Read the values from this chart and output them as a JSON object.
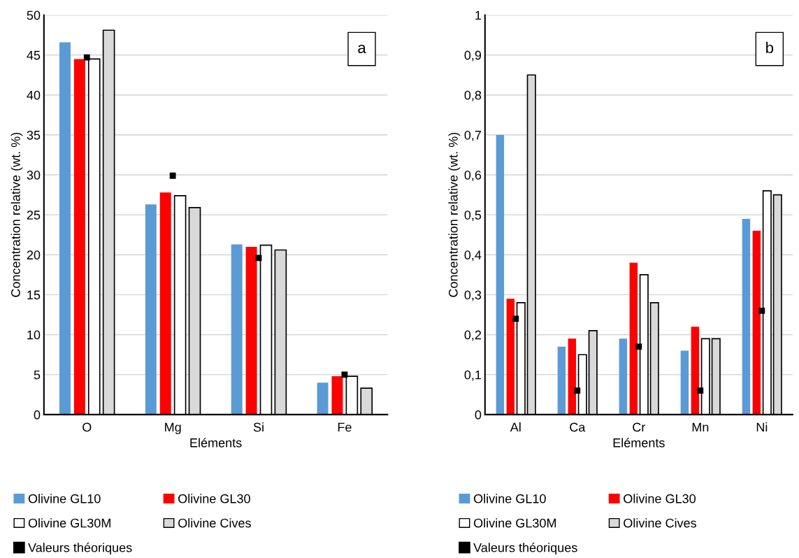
{
  "chart_data": [
    {
      "type": "bar",
      "categories": [
        "O",
        "Mg",
        "Si",
        "Fe"
      ],
      "xlabel": "Eléments",
      "ylabel": "Concentration relative (wt. %)",
      "annotations": [
        "a"
      ],
      "series": [
        {
          "name": "Olivine GL10",
          "color": "#5b9bd5",
          "values": [
            46.6,
            26.3,
            21.3,
            4.0
          ]
        },
        {
          "name": "Olivine GL30",
          "color": "#ff0000",
          "values": [
            44.5,
            27.8,
            21.0,
            4.8
          ]
        },
        {
          "name": "Olivine GL30M",
          "color": "#ffffff",
          "values": [
            44.5,
            27.4,
            21.2,
            4.8
          ]
        },
        {
          "name": "Olivine Cives",
          "color": "#d9d9d9",
          "values": [
            48.1,
            25.9,
            20.6,
            3.3
          ]
        },
        {
          "name": "Valeurs théoriques",
          "type": "scatter",
          "marker": "square",
          "color": "#000000",
          "values": [
            44.7,
            29.9,
            19.6,
            5.0
          ]
        }
      ],
      "ylim": [
        0,
        50
      ],
      "yticks": [
        0,
        5,
        10,
        15,
        20,
        25,
        30,
        35,
        40,
        45,
        50
      ],
      "grid": "y",
      "legend": "bottom"
    },
    {
      "type": "bar",
      "categories": [
        "Al",
        "Ca",
        "Cr",
        "Mn",
        "Ni"
      ],
      "xlabel": "Eléments",
      "ylabel": "Concentration relative (wt. %)",
      "annotations": [
        "b"
      ],
      "series": [
        {
          "name": "Olivine GL10",
          "color": "#5b9bd5",
          "values": [
            0.7,
            0.17,
            0.19,
            0.16,
            0.49
          ]
        },
        {
          "name": "Olivine GL30",
          "color": "#ff0000",
          "values": [
            0.29,
            0.19,
            0.38,
            0.22,
            0.46
          ]
        },
        {
          "name": "Olivine GL30M",
          "color": "#ffffff",
          "values": [
            0.28,
            0.15,
            0.35,
            0.19,
            0.56
          ]
        },
        {
          "name": "Olivine Cives",
          "color": "#d9d9d9",
          "values": [
            0.85,
            0.21,
            0.28,
            0.19,
            0.55
          ]
        },
        {
          "name": "Valeurs théoriques",
          "type": "scatter",
          "marker": "square",
          "color": "#000000",
          "values": [
            0.24,
            0.06,
            0.17,
            0.06,
            0.26
          ]
        }
      ],
      "ylim": [
        0,
        1
      ],
      "yticks": [
        0,
        {
          "value": 0.1,
          "label": "0,1"
        },
        {
          "value": 0.2,
          "label": "0,2"
        },
        {
          "value": 0.3,
          "label": "0,3"
        },
        {
          "value": 0.4,
          "label": "0,4"
        },
        {
          "value": 0.5,
          "label": "0,5"
        },
        {
          "value": 0.6,
          "label": "0,6"
        },
        {
          "value": 0.7,
          "label": "0,7"
        },
        {
          "value": 0.8,
          "label": "0,8"
        },
        {
          "value": 0.9,
          "label": "0,9"
        },
        1
      ],
      "grid": "y",
      "legend": "bottom"
    }
  ]
}
